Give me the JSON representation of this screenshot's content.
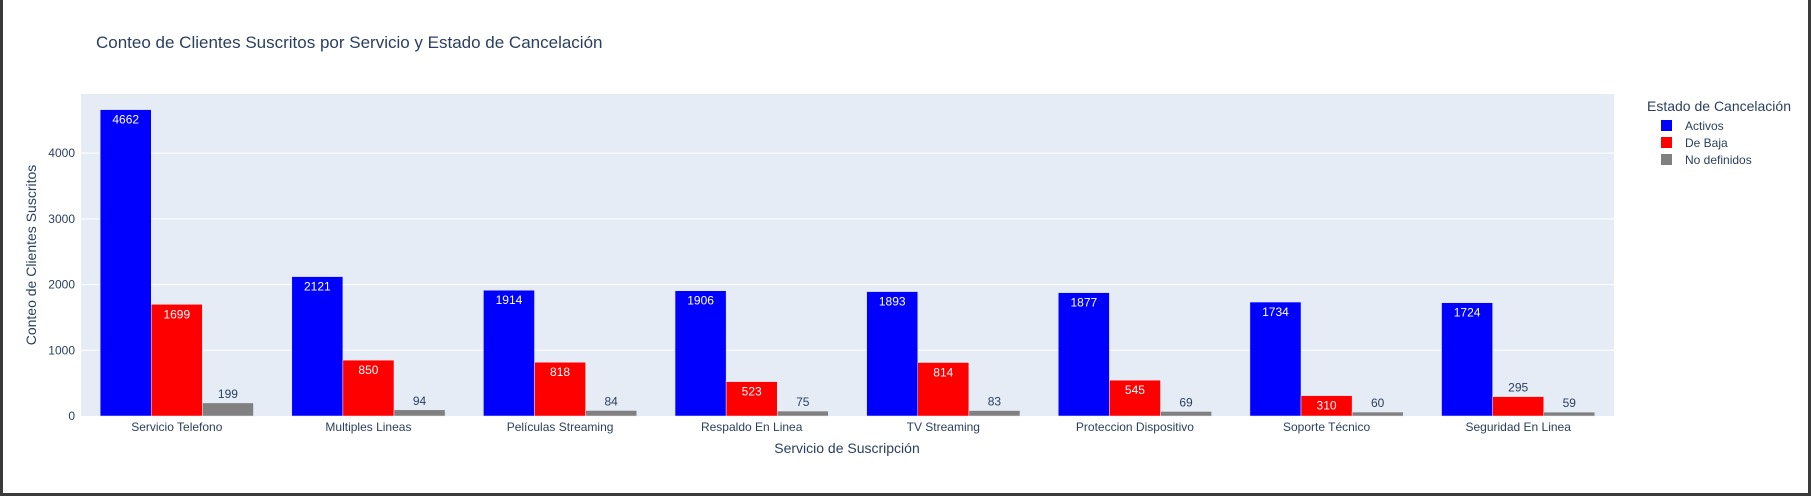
{
  "chart_data": {
    "type": "bar",
    "title": "Conteo de Clientes Suscritos por Servicio y Estado de Cancelación",
    "xlabel": "Servicio de Suscripción",
    "ylabel": "Conteo de Clientes Suscritos",
    "ylim": [
      0,
      4900
    ],
    "yticks": [
      0,
      1000,
      2000,
      3000,
      4000
    ],
    "grid": true,
    "legend_title": "Estado de Cancelación",
    "legend_position": "right",
    "categories": [
      "Servicio Telefono",
      "Multiples Lineas",
      "Películas Streaming",
      "Respaldo En Linea",
      "TV Streaming",
      "Proteccion Dispositivo",
      "Soporte Técnico",
      "Seguridad En Linea"
    ],
    "series": [
      {
        "name": "Activos",
        "color": "#0000ff",
        "values": [
          4662,
          2121,
          1914,
          1906,
          1893,
          1877,
          1734,
          1724
        ]
      },
      {
        "name": "De Baja",
        "color": "#ff0000",
        "values": [
          1699,
          850,
          818,
          523,
          814,
          545,
          310,
          295
        ]
      },
      {
        "name": "No definidos",
        "color": "#808080",
        "values": [
          199,
          94,
          84,
          75,
          83,
          69,
          60,
          59
        ]
      }
    ],
    "plot_background": "#e5ecf6"
  }
}
